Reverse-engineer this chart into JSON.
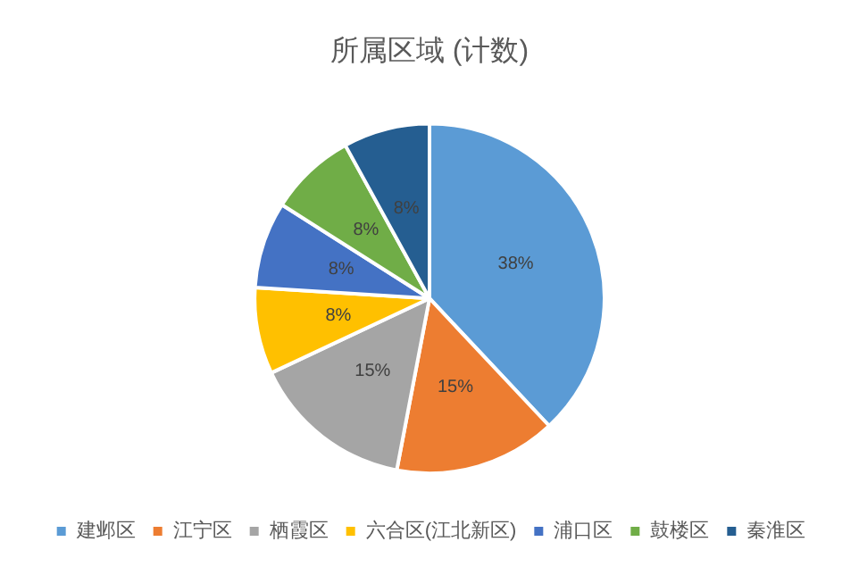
{
  "chart_data": {
    "type": "pie",
    "title": "所属区域 (计数)",
    "categories": [
      "建邺区",
      "江宁区",
      "栖霞区",
      "六合区(江北新区)",
      "浦口区",
      "鼓楼区",
      "秦淮区"
    ],
    "values": [
      38,
      15,
      15,
      8,
      8,
      8,
      8
    ],
    "value_labels": [
      "38%",
      "15%",
      "15%",
      "8%",
      "8%",
      "8%",
      "8%"
    ],
    "colors": [
      "#5b9bd5",
      "#ed7d31",
      "#a5a5a5",
      "#ffc000",
      "#4472c4",
      "#70ad47",
      "#255e91"
    ],
    "legend": "bottom"
  }
}
